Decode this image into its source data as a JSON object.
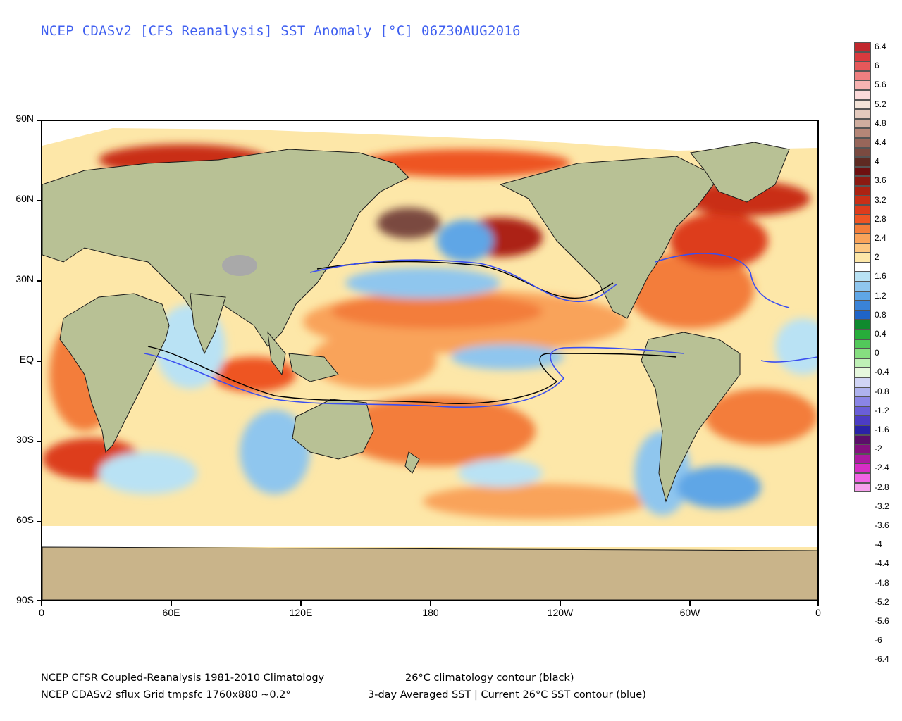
{
  "title": "NCEP CDASv2 [CFS Reanalysis] SST Anomaly [°C] 06Z30AUG2016",
  "latitude_labels": [
    "90N",
    "60N",
    "30N",
    "EQ",
    "30S",
    "60S",
    "90S"
  ],
  "longitude_labels": [
    "0",
    "60E",
    "120E",
    "180",
    "120W",
    "60W",
    "0"
  ],
  "colorbar": {
    "unit": "°C",
    "labels": [
      "6.4",
      "6",
      "5.6",
      "5.2",
      "4.8",
      "4.4",
      "4",
      "3.6",
      "3.2",
      "2.8",
      "2.4",
      "2",
      "1.6",
      "1.2",
      "0.8",
      "0.4",
      "0",
      "-0.4",
      "-0.8",
      "-1.2",
      "-1.6",
      "-2",
      "-2.4",
      "-2.8",
      "-3.2",
      "-3.6",
      "-4",
      "-4.4",
      "-4.8",
      "-5.2",
      "-5.6",
      "-6",
      "-6.4"
    ],
    "colors": [
      "#c1272d",
      "#d93a3e",
      "#e5585a",
      "#ee7f80",
      "#f7b3b2",
      "#fbdada",
      "#f3e3d8",
      "#e4cabe",
      "#cfad9f",
      "#b58677",
      "#97665a",
      "#7a4a40",
      "#5e2a22",
      "#6e1010",
      "#8c1a12",
      "#ac2212",
      "#c92f16",
      "#dd3c1c",
      "#ee5524",
      "#f37d3a",
      "#f9a35a",
      "#fcc680",
      "#fde7a8",
      "#ffffff",
      "#b9e2f4",
      "#8fc6ee",
      "#5fa6e6",
      "#3a83d8",
      "#1f64c8",
      "#0f8a2e",
      "#27ad3a",
      "#52c85a",
      "#86de80",
      "#bff0b6",
      "#e6f7dd",
      "#d0d4f5",
      "#aeb2ee",
      "#8a85e6",
      "#6a5ed8",
      "#4c3cc4",
      "#2a22a6",
      "#5c0e6a",
      "#85107f",
      "#ad1aa1",
      "#d72ec6",
      "#f064e4",
      "#f6a0ec"
    ]
  },
  "footer": {
    "line1_left": "NCEP CFSR Coupled-Reanalysis 1981-2010 Climatology",
    "line1_right": "26°C climatology contour (black)",
    "line2_left": "NCEP CDASv2 sflux Grid tmpsfc 1760x880 ~0.2°",
    "line2_right": "3-day Averaged SST | Current 26°C SST contour (blue)"
  }
}
